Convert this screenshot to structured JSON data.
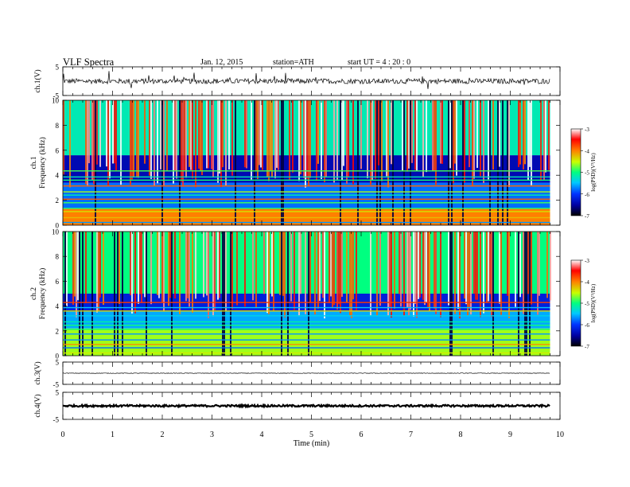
{
  "header": {
    "title": "VLF  Spectra",
    "date": "Jan. 12, 2015",
    "station": "station=ATH",
    "start_ut": "start  UT  =   4  : 20 : 0"
  },
  "colors": {
    "background": "#ffffff",
    "axis": "#000000",
    "colormap": [
      "#000000",
      "#0000a0",
      "#0033ff",
      "#00c8ff",
      "#00ff80",
      "#c8ff00",
      "#ff8000",
      "#ff0000",
      "#ffffff"
    ]
  },
  "chart_data": [
    {
      "name": "ch1-waveform",
      "type": "line",
      "ylabel": "ch.1(V)",
      "ylim": [
        -5,
        5
      ],
      "yticks": [
        "5",
        "-5"
      ],
      "xlim": [
        0,
        10
      ],
      "trace": {
        "mean": 0,
        "spread": 0.9,
        "burst_amplitude": 3.5
      }
    },
    {
      "name": "ch1-spectrogram",
      "type": "heatmap",
      "ylabel": "ch.1\nFrequency  (kHz)",
      "ylim": [
        0,
        10
      ],
      "yticks": [
        "0",
        "2",
        "4",
        "6",
        "8",
        "10"
      ],
      "xlim": [
        0,
        10
      ],
      "data_end_min": 9.8,
      "colorbar": {
        "label": "log(PSD)(V²/Hz)",
        "range": [
          -7,
          -3
        ],
        "ticks": [
          "-3",
          "-4",
          "-5",
          "-6",
          "-7"
        ]
      },
      "bands": [
        {
          "f_low": 0,
          "f_high": 1.4,
          "log_psd": -4.0
        },
        {
          "f_low": 1.4,
          "f_high": 3.4,
          "log_psd": -5.8
        },
        {
          "f_low": 3.4,
          "f_high": 5.6,
          "log_psd": -6.4
        },
        {
          "f_low": 5.6,
          "f_high": 10,
          "log_psd": -5.2
        }
      ]
    },
    {
      "name": "ch2-spectrogram",
      "type": "heatmap",
      "ylabel": "ch.2\nFrequency  (kHz)",
      "ylim": [
        0,
        10
      ],
      "yticks": [
        "0",
        "2",
        "4",
        "6",
        "8",
        "10"
      ],
      "xlim": [
        0,
        10
      ],
      "data_end_min": 9.8,
      "colorbar": {
        "label": "log(PSD)(V²/Hz)",
        "range": [
          -7,
          -3
        ],
        "ticks": [
          "-3",
          "-4",
          "-5",
          "-6",
          "-7"
        ]
      },
      "bands": [
        {
          "f_low": 0,
          "f_high": 2.2,
          "log_psd": -4.6
        },
        {
          "f_low": 2.2,
          "f_high": 3.6,
          "log_psd": -5.6
        },
        {
          "f_low": 3.6,
          "f_high": 5.0,
          "log_psd": -6.2
        },
        {
          "f_low": 5.0,
          "f_high": 10,
          "log_psd": -5.0
        }
      ]
    },
    {
      "name": "ch3-waveform",
      "type": "line",
      "ylabel": "ch.3(V)",
      "ylim": [
        -5,
        5
      ],
      "yticks": [
        "5",
        "-5"
      ],
      "xlim": [
        0,
        10
      ],
      "trace": {
        "mean": 0,
        "spread": 0.12,
        "burst_amplitude": 0
      }
    },
    {
      "name": "ch4-waveform",
      "type": "line",
      "ylabel": "ch.4(V)",
      "ylim": [
        -5,
        5
      ],
      "yticks": [
        "5",
        "-5"
      ],
      "xlim": [
        0,
        10
      ],
      "trace": {
        "mean": 0,
        "spread": 0.35,
        "burst_amplitude": 0
      }
    }
  ],
  "x_axis": {
    "label": "Time  (min)",
    "ticks": [
      "0",
      "1",
      "2",
      "3",
      "4",
      "5",
      "6",
      "7",
      "8",
      "9",
      "10"
    ]
  }
}
